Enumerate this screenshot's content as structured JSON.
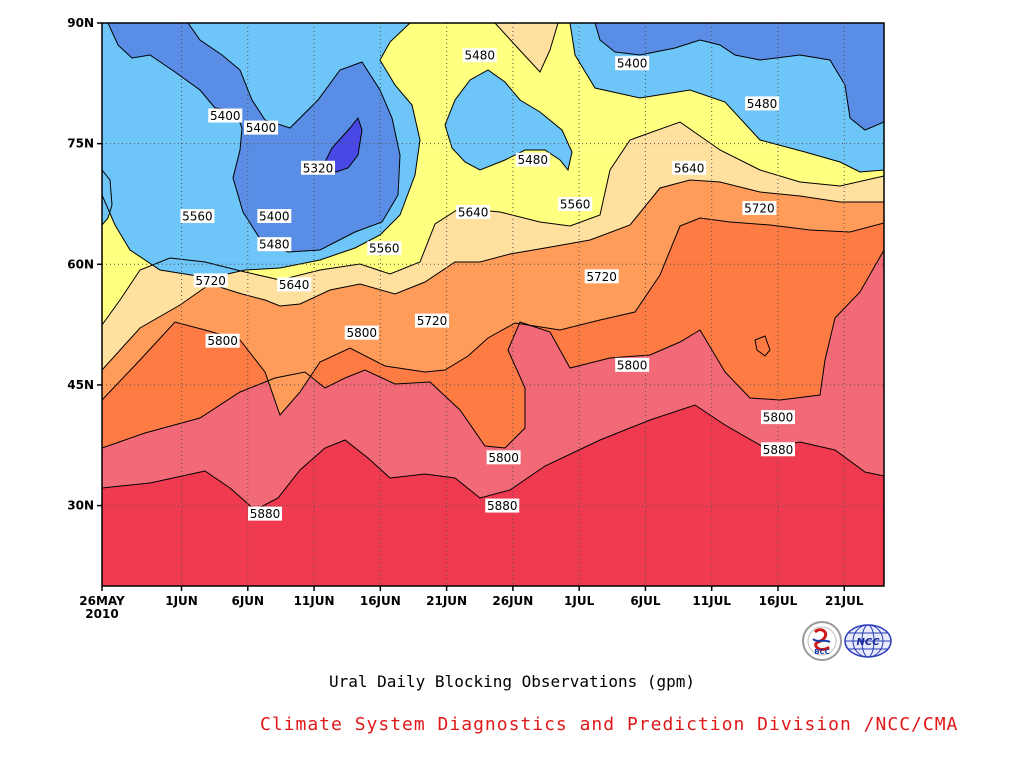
{
  "chart_data": {
    "type": "heatmap",
    "subtype": "filled-contour",
    "title": "Ural Daily Blocking Observations (gpm)",
    "x_axis": {
      "ticks": [
        "26MAY",
        "1JUN",
        "6JUN",
        "11JUN",
        "16JUN",
        "21JUN",
        "26JUN",
        "1JUL",
        "6JUL",
        "11JUL",
        "16JUL",
        "21JUL"
      ],
      "tick_days": [
        0,
        6,
        11,
        16,
        21,
        26,
        31,
        36,
        41,
        46,
        51,
        56
      ],
      "year_label": "2010",
      "range_days": [
        0,
        59
      ]
    },
    "y_axis": {
      "ticks": [
        "30N",
        "45N",
        "60N",
        "75N",
        "90N"
      ],
      "tick_values": [
        30,
        45,
        60,
        75,
        90
      ],
      "range": [
        20,
        90
      ]
    },
    "grid": "dotted",
    "contour_levels": [
      5320,
      5400,
      5480,
      5560,
      5640,
      5720,
      5800,
      5880
    ],
    "fill_colors": {
      "lt5320": "#2222cc",
      "5320_5400": "#5a8ee6",
      "5400_5480": "#6ec5f7",
      "5480_5560": "#ffff80",
      "5560_5640": "#ffe09e",
      "5640_5720": "#ffa060",
      "5720_5800": "#ff7b44",
      "5800_5880": "#f26a78",
      "gt5880": "#f03a50"
    },
    "contour_labels": [
      {
        "text": "5320",
        "day": 16.3,
        "lat": 72
      },
      {
        "text": "5400",
        "day": 9.3,
        "lat": 78.5
      },
      {
        "text": "5400",
        "day": 12.0,
        "lat": 77
      },
      {
        "text": "5400",
        "day": 13.0,
        "lat": 66
      },
      {
        "text": "5400",
        "day": 40.0,
        "lat": 85
      },
      {
        "text": "5480",
        "day": 28.5,
        "lat": 86
      },
      {
        "text": "5480",
        "day": 32.5,
        "lat": 73
      },
      {
        "text": "5480",
        "day": 13.0,
        "lat": 62.5
      },
      {
        "text": "5480",
        "day": 49.8,
        "lat": 80
      },
      {
        "text": "5560",
        "day": 7.2,
        "lat": 66
      },
      {
        "text": "5560",
        "day": 21.3,
        "lat": 62
      },
      {
        "text": "5560",
        "day": 35.7,
        "lat": 67.5
      },
      {
        "text": "5640",
        "day": 28.0,
        "lat": 66.5
      },
      {
        "text": "5640",
        "day": 14.5,
        "lat": 57.5
      },
      {
        "text": "5640",
        "day": 44.3,
        "lat": 72
      },
      {
        "text": "5720",
        "day": 8.2,
        "lat": 58
      },
      {
        "text": "5720",
        "day": 24.9,
        "lat": 53
      },
      {
        "text": "5720",
        "day": 37.7,
        "lat": 58.5
      },
      {
        "text": "5720",
        "day": 49.6,
        "lat": 67
      },
      {
        "text": "5800",
        "day": 9.1,
        "lat": 50.5
      },
      {
        "text": "5800",
        "day": 19.6,
        "lat": 51.5
      },
      {
        "text": "5800",
        "day": 40.0,
        "lat": 47.5
      },
      {
        "text": "5800",
        "day": 30.3,
        "lat": 36
      },
      {
        "text": "5800",
        "day": 51.0,
        "lat": 41
      },
      {
        "text": "5880",
        "day": 12.3,
        "lat": 29
      },
      {
        "text": "5880",
        "day": 30.2,
        "lat": 30
      },
      {
        "text": "5880",
        "day": 51.0,
        "lat": 37
      }
    ]
  },
  "logos": [
    {
      "name": "BCC",
      "label": "BCC"
    },
    {
      "name": "NCC",
      "label": "NCC"
    }
  ],
  "credit": "Climate System Diagnostics and Prediction Division /NCC/CMA"
}
